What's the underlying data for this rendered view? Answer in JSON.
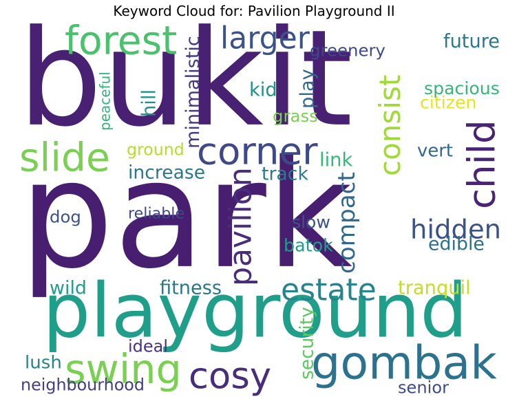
{
  "title": "Keyword Cloud for: Pavilion Playground II",
  "words": [
    {
      "text": "bukit",
      "color": "#482173",
      "rotated": false
    },
    {
      "text": "park",
      "color": "#481f70",
      "rotated": false
    },
    {
      "text": "playground",
      "color": "#1f9e89",
      "rotated": false
    },
    {
      "text": "gombak",
      "color": "#2c728e",
      "rotated": false
    },
    {
      "text": "forest",
      "color": "#4ac16d",
      "rotated": false
    },
    {
      "text": "larger",
      "color": "#3b528b",
      "rotated": false
    },
    {
      "text": "corner",
      "color": "#3e4989",
      "rotated": false
    },
    {
      "text": "slide",
      "color": "#7ad151",
      "rotated": false
    },
    {
      "text": "swing",
      "color": "#7ad151",
      "rotated": false
    },
    {
      "text": "cosy",
      "color": "#472d7b",
      "rotated": false
    },
    {
      "text": "child",
      "color": "#482475",
      "rotated": true
    },
    {
      "text": "hidden",
      "color": "#3b528b",
      "rotated": false
    },
    {
      "text": "estate",
      "color": "#25848e",
      "rotated": false
    },
    {
      "text": "pavilion",
      "color": "#472d7b",
      "rotated": true
    },
    {
      "text": "compact",
      "color": "#31688e",
      "rotated": true
    },
    {
      "text": "consist",
      "color": "#a0da39",
      "rotated": true
    },
    {
      "text": "greenery",
      "color": "#3e4989",
      "rotated": false
    },
    {
      "text": "future",
      "color": "#2a788e",
      "rotated": false
    },
    {
      "text": "spacious",
      "color": "#35b779",
      "rotated": false
    },
    {
      "text": "citizen",
      "color": "#e7e419",
      "rotated": false
    },
    {
      "text": "minimalistic",
      "color": "#443a83",
      "rotated": true
    },
    {
      "text": "peaceful",
      "color": "#2fb47c",
      "rotated": true
    },
    {
      "text": "hill",
      "color": "#21918c",
      "rotated": true
    },
    {
      "text": "kid",
      "color": "#21918c",
      "rotated": false
    },
    {
      "text": "play",
      "color": "#31688e",
      "rotated": true
    },
    {
      "text": "grass",
      "color": "#7ad151",
      "rotated": false
    },
    {
      "text": "ground",
      "color": "#b5de2b",
      "rotated": false
    },
    {
      "text": "increase",
      "color": "#2a788e",
      "rotated": false
    },
    {
      "text": "link",
      "color": "#35b779",
      "rotated": false
    },
    {
      "text": "track",
      "color": "#287c8e",
      "rotated": false
    },
    {
      "text": "vert",
      "color": "#31688e",
      "rotated": false
    },
    {
      "text": "dog",
      "color": "#3b528b",
      "rotated": false
    },
    {
      "text": "reliable",
      "color": "#3e4989",
      "rotated": false
    },
    {
      "text": "slow",
      "color": "#3b528b",
      "rotated": false
    },
    {
      "text": "batok",
      "color": "#1f9e89",
      "rotated": false
    },
    {
      "text": "edible",
      "color": "#2c728e",
      "rotated": false
    },
    {
      "text": "wild",
      "color": "#1f9e89",
      "rotated": false
    },
    {
      "text": "fitness",
      "color": "#2a788e",
      "rotated": false
    },
    {
      "text": "tranquil",
      "color": "#c2df23",
      "rotated": false
    },
    {
      "text": "security",
      "color": "#5ec962",
      "rotated": true
    },
    {
      "text": "ideal",
      "color": "#46327e",
      "rotated": false
    },
    {
      "text": "lush",
      "color": "#25848e",
      "rotated": false
    },
    {
      "text": "neighbourhood",
      "color": "#433e85",
      "rotated": false
    },
    {
      "text": "senior",
      "color": "#3e4989",
      "rotated": false
    }
  ]
}
